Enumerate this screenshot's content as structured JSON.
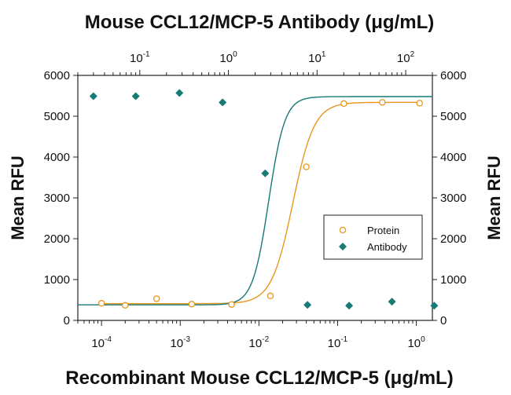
{
  "chart_data": {
    "type": "scatter",
    "title": "Mouse CCL12/MCP-5 Antibody (μg/mL)",
    "xlabel": "Recombinant Mouse CCL12/MCP-5 (μg/mL)",
    "ylabel": "Mean RFU",
    "ylabel_right": "Mean RFU",
    "x_scale": "log",
    "xlim": [
      5e-05,
      1.6
    ],
    "ylim": [
      0,
      6000
    ],
    "x_top_scale": "log",
    "x_top_lim": [
      0.02,
      200
    ],
    "x_ticks": [
      {
        "value": 0.0001,
        "base": "10",
        "exp": "-4"
      },
      {
        "value": 0.001,
        "base": "10",
        "exp": "-3"
      },
      {
        "value": 0.01,
        "base": "10",
        "exp": "-2"
      },
      {
        "value": 0.1,
        "base": "10",
        "exp": "-1"
      },
      {
        "value": 1,
        "base": "10",
        "exp": "0"
      }
    ],
    "x_top_ticks": [
      {
        "value": 0.1,
        "base": "10",
        "exp": "-1"
      },
      {
        "value": 1,
        "base": "10",
        "exp": "0"
      },
      {
        "value": 10,
        "base": "10",
        "exp": "1"
      },
      {
        "value": 100,
        "base": "10",
        "exp": "2"
      }
    ],
    "y_ticks": [
      "0",
      "1000",
      "2000",
      "3000",
      "4000",
      "5000",
      "6000"
    ],
    "y_ticks_right": [
      "0",
      "1000",
      "2000",
      "3000",
      "4000",
      "5000",
      "6000"
    ],
    "grid": false,
    "legend_position": "center-right",
    "series": [
      {
        "name": "Protein",
        "axis": "bottom",
        "marker": "circle-open",
        "color": "#e8961e",
        "x": [
          0.0001,
          0.0002,
          0.0005,
          0.0014,
          0.0045,
          0.014,
          0.04,
          0.12,
          0.37,
          1.1
        ],
        "y": [
          420,
          370,
          530,
          400,
          390,
          600,
          3760,
          5310,
          5340,
          5320
        ],
        "fit": {
          "bottom": 410,
          "top": 5340,
          "ec50": 0.027,
          "hill": 3.2
        }
      },
      {
        "name": "Antibody",
        "axis": "top",
        "marker": "diamond-filled",
        "color": "#167a76",
        "x": [
          0.03,
          0.09,
          0.28,
          0.86,
          2.6,
          7.8,
          23,
          70,
          210
        ],
        "y": [
          5490,
          5490,
          5570,
          5340,
          3600,
          380,
          360,
          460,
          360
        ],
        "fit": {
          "bottom": 380,
          "top": 5480,
          "ec50": 2.85,
          "hill": 4.8
        }
      }
    ]
  }
}
